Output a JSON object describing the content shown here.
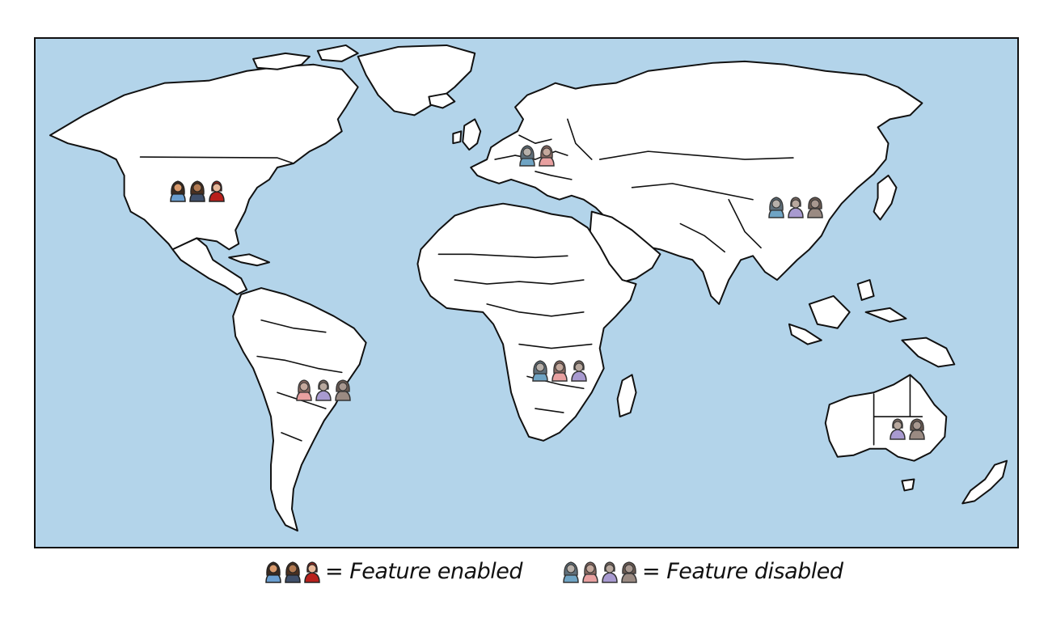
{
  "map": {
    "ocean_color": "#b3d4ea",
    "land_color": "#ffffff"
  },
  "user_icon_colors": {
    "enabled": {
      "skin": [
        "#d99a6c",
        "#b27a52",
        "#e8b89a"
      ],
      "hair": [
        "#3a2a20",
        "#4a3020",
        "#8a2820"
      ],
      "shirt": [
        "#6a9ed0",
        "#3f4f6a",
        "#b8201c"
      ]
    },
    "disabled": {
      "skin": [
        "#b7b0aa",
        "#c4a89c",
        "#b8a89e",
        "#a89890"
      ],
      "hair": [
        "#5f6f7a",
        "#8a6a62",
        "#7a6a62",
        "#6a5a52"
      ],
      "shirt": [
        "#6fa4c4",
        "#e8a0a0",
        "#a89ad0",
        "#9a8a82"
      ]
    }
  },
  "regions": [
    {
      "id": "north-america",
      "state": "enabled",
      "users": 3
    },
    {
      "id": "europe",
      "state": "disabled",
      "users": 2
    },
    {
      "id": "asia",
      "state": "disabled",
      "users": 3
    },
    {
      "id": "south-america",
      "state": "disabled",
      "users": 3
    },
    {
      "id": "africa",
      "state": "disabled",
      "users": 3
    },
    {
      "id": "australia",
      "state": "disabled",
      "users": 2
    }
  ],
  "legend": {
    "enabled_label": "= Feature enabled",
    "disabled_label": "= Feature disabled"
  }
}
